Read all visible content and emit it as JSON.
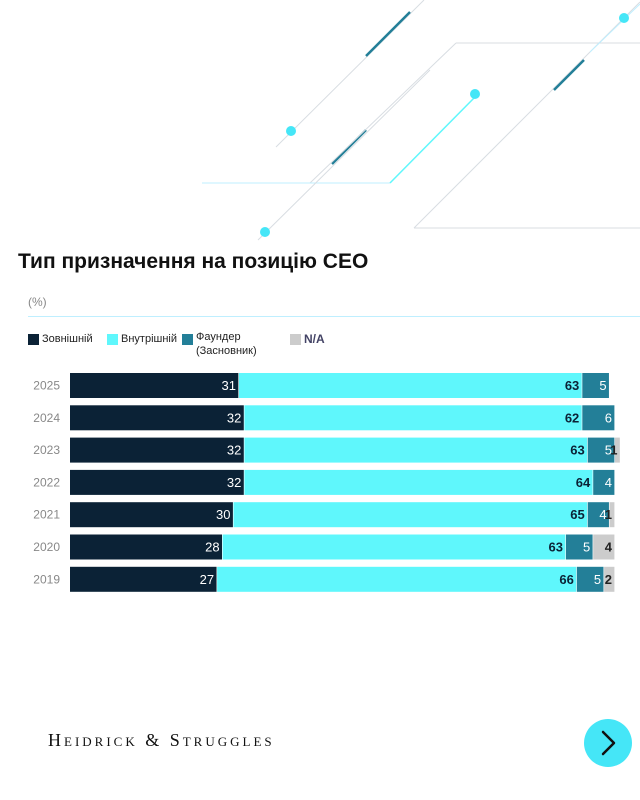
{
  "title": "Тип призначення на позицію CEO",
  "unit": "(%)",
  "legend": [
    {
      "label": "Зовнішній",
      "color": "#0b2236"
    },
    {
      "label": "Внутрішній",
      "color": "#5ff7fc"
    },
    {
      "label": "Фаундер\n(Засновник)",
      "color": "#237f98"
    },
    {
      "label": "N/A",
      "color": "#cccccc"
    }
  ],
  "brand": "Heidrick & Struggles",
  "next_icon": "chevron-right-icon",
  "chart_data": {
    "type": "bar",
    "orientation": "horizontal",
    "stacked": true,
    "unit": "%",
    "categories": [
      "2025",
      "2024",
      "2023",
      "2022",
      "2021",
      "2020",
      "2019"
    ],
    "series": [
      {
        "name": "Зовнішній",
        "color": "#0b2236",
        "values": [
          31,
          32,
          32,
          32,
          30,
          28,
          27
        ]
      },
      {
        "name": "Внутрішній",
        "color": "#5ff7fc",
        "values": [
          63,
          62,
          63,
          64,
          65,
          63,
          66
        ]
      },
      {
        "name": "Фаундер (Засновник)",
        "color": "#237f98",
        "values": [
          5,
          6,
          5,
          4,
          4,
          5,
          5
        ]
      },
      {
        "name": "N/A",
        "color": "#cccccc",
        "values": [
          null,
          null,
          1,
          null,
          1,
          4,
          2
        ]
      }
    ]
  }
}
